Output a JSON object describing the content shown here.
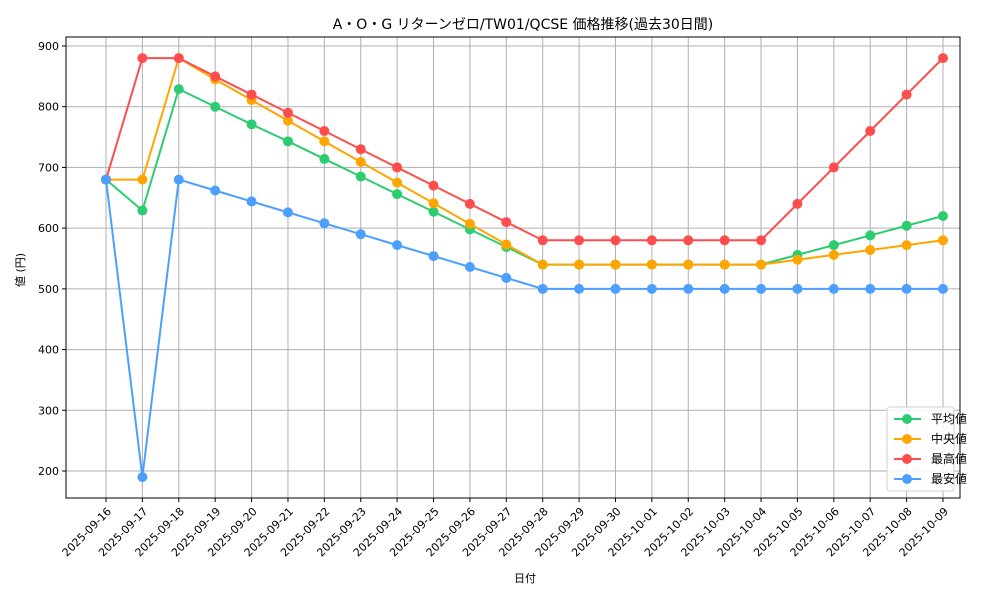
{
  "chart_data": {
    "type": "line",
    "title": "A・O・G リターンゼロ/TW01/QCSE 価格推移(過去30日間)",
    "xlabel": "日付",
    "ylabel": "値 (円)",
    "ylim": [
      155,
      915
    ],
    "yticks": [
      200,
      300,
      400,
      500,
      600,
      700,
      800,
      900
    ],
    "grid": true,
    "legend_position": "lower right",
    "x": [
      "2025-09-16",
      "2025-09-17",
      "2025-09-18",
      "2025-09-19",
      "2025-09-20",
      "2025-09-21",
      "2025-09-22",
      "2025-09-23",
      "2025-09-24",
      "2025-09-25",
      "2025-09-26",
      "2025-09-27",
      "2025-09-28",
      "2025-09-29",
      "2025-09-30",
      "2025-10-01",
      "2025-10-02",
      "2025-10-03",
      "2025-10-04",
      "2025-10-05",
      "2025-10-06",
      "2025-10-07",
      "2025-10-08",
      "2025-10-09"
    ],
    "series": [
      {
        "name": "平均値",
        "color": "#2ecc71",
        "values": [
          680,
          629,
          829,
          800,
          771,
          743,
          714,
          685,
          656,
          627,
          598,
          569,
          540,
          540,
          540,
          540,
          540,
          540,
          540,
          556,
          572,
          588,
          604,
          620
        ]
      },
      {
        "name": "中央値",
        "color": "#ffa500",
        "values": [
          680,
          680,
          880,
          845,
          811,
          777,
          743,
          709,
          675,
          641,
          607,
          573,
          540,
          540,
          540,
          540,
          540,
          540,
          540,
          548,
          556,
          564,
          572,
          580
        ]
      },
      {
        "name": "最高値",
        "color": "#ff4d4d",
        "values": [
          680,
          880,
          880,
          850,
          820,
          790,
          760,
          730,
          700,
          670,
          640,
          610,
          580,
          580,
          580,
          580,
          580,
          580,
          580,
          640,
          700,
          760,
          820,
          880
        ]
      },
      {
        "name": "最安値",
        "color": "#4d9fff",
        "values": [
          680,
          190,
          680,
          662,
          644,
          626,
          608,
          590,
          572,
          554,
          536,
          518,
          500,
          500,
          500,
          500,
          500,
          500,
          500,
          500,
          500,
          500,
          500,
          500
        ]
      }
    ]
  }
}
